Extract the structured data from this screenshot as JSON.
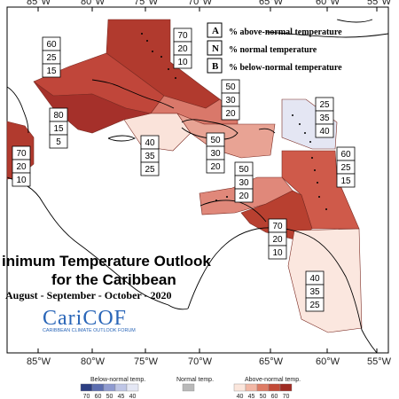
{
  "longitude_labels": [
    "85°W",
    "80°W",
    "75°W",
    "70°W",
    "65°W",
    "60°W",
    "55°W"
  ],
  "legend_box": {
    "items": [
      {
        "key": "A",
        "text": "% above-normal temperature"
      },
      {
        "key": "N",
        "text": "% normal temperature"
      },
      {
        "key": "B",
        "text": "% below-normal temperature"
      }
    ]
  },
  "title": {
    "line1": "inimum Temperature Outlook",
    "line2": "for the Caribbean",
    "period": "August - September - October - 2020"
  },
  "logo": {
    "name": "CariCOF",
    "subtitle": "CARIBBEAN CLIMATE OUTLOOK FORUM"
  },
  "regions": [
    {
      "id": "bahamas-north",
      "A": 70,
      "N": 20,
      "B": 10,
      "color": "#b13a2e"
    },
    {
      "id": "bahamas-west",
      "A": 60,
      "N": 25,
      "B": 15,
      "color": "#c0463a"
    },
    {
      "id": "cuba",
      "A": 80,
      "N": 15,
      "B": 5,
      "color": "#a5302a"
    },
    {
      "id": "turks-caicos",
      "A": 50,
      "N": 30,
      "B": 20,
      "color": "#d9786a"
    },
    {
      "id": "central-america",
      "A": 70,
      "N": 20,
      "B": 10,
      "color": "#b13a2e"
    },
    {
      "id": "jamaica-area",
      "A": 40,
      "N": 35,
      "B": 25,
      "color": "#fae3da"
    },
    {
      "id": "hispaniola",
      "A": 50,
      "N": 30,
      "B": 20,
      "color": "#e8a394"
    },
    {
      "id": "north-leewards",
      "A": 25,
      "N": 35,
      "B": 40,
      "color": "#e4e6f3"
    },
    {
      "id": "windwards",
      "A": 60,
      "N": 25,
      "B": 15,
      "color": "#cf5a4a"
    },
    {
      "id": "abc-islands",
      "A": 50,
      "N": 30,
      "B": 20,
      "color": "#e0887a"
    },
    {
      "id": "trinidad",
      "A": 70,
      "N": 20,
      "B": 10,
      "color": "#b84030"
    },
    {
      "id": "guianas",
      "A": 40,
      "N": 35,
      "B": 25,
      "color": "#fbe7df"
    }
  ],
  "colorbar": {
    "below_title": "Below-normal temp.",
    "normal_title": "Normal temp.",
    "above_title": "Above-normal temp.",
    "below_ticks": [
      "70",
      "60",
      "50",
      "45",
      "40"
    ],
    "normal_ticks": [],
    "above_ticks": [
      "40",
      "45",
      "50",
      "60",
      "70"
    ],
    "below_colors": [
      "#2c3e82",
      "#5b6db0",
      "#8f9bd0",
      "#bfc6e6",
      "#e4e7f4"
    ],
    "normal_colors": [
      "#b9b9b9"
    ],
    "above_colors": [
      "#fbe6dc",
      "#f2b7a5",
      "#de7b64",
      "#c24a37",
      "#9e2a22"
    ]
  }
}
